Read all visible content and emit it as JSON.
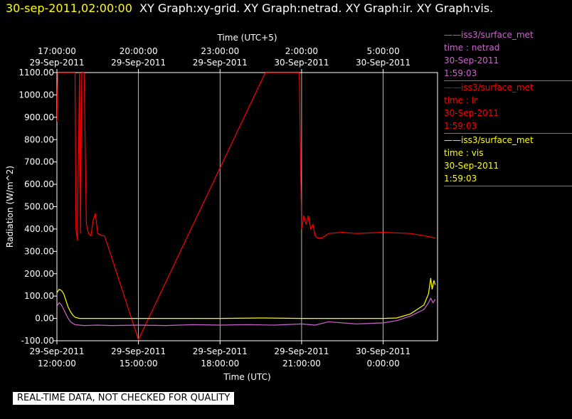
{
  "header": {
    "timestamp": "30-sep-2011,02:00:00",
    "titles": "XY Graph:xy-grid.  XY Graph:netrad.  XY Graph:ir.  XY Graph:vis."
  },
  "notice": "REAL-TIME DATA, NOT CHECKED FOR QUALITY",
  "colors": {
    "netrad": "#cc66cc",
    "ir": "#ff0000",
    "vis": "#ffff00",
    "grid": "#ffffff",
    "background": "#000000"
  },
  "legend": [
    {
      "station": "iss3/surface_met",
      "var": "time : netrad",
      "date": "30-Sep-2011",
      "time": "1:59:03",
      "color": "#cc66cc"
    },
    {
      "station": "iss3/surface_met",
      "var": "time : ir",
      "date": "30-Sep-2011",
      "time": "1:59:03",
      "color": "#ff0000"
    },
    {
      "station": "iss3/surface_met",
      "var": "time : vis",
      "date": "30-Sep-2011",
      "time": "1:59:03",
      "color": "#ffff00"
    }
  ],
  "chart_data": {
    "type": "line",
    "ylabel": "Radiation (W/m^2)",
    "xlabel_bottom": "Time (UTC)",
    "xlabel_top": "Time (UTC+5)",
    "ylim": [
      -100,
      1100
    ],
    "xlim": [
      "2011-09-29 12:00",
      "2011-09-30 02:00"
    ],
    "grid": true,
    "legend_position": "right",
    "yticks": [
      "1100.00",
      "1000.00",
      "900.00",
      "800.00",
      "700.00",
      "600.00",
      "500.00",
      "400.00",
      "300.00",
      "200.00",
      "100.00",
      "0.00",
      "-100.00"
    ],
    "xticks_bottom": [
      {
        "date": "29-Sep-2011",
        "time": "12:00:00"
      },
      {
        "date": "29-Sep-2011",
        "time": "15:00:00"
      },
      {
        "date": "29-Sep-2011",
        "time": "18:00:00"
      },
      {
        "date": "29-Sep-2011",
        "time": "21:00:00"
      },
      {
        "date": "30-Sep-2011",
        "time": "0:00:00"
      }
    ],
    "xticks_top": [
      {
        "time": "17:00:00",
        "date": "29-Sep-2011"
      },
      {
        "time": "20:00:00",
        "date": "29-Sep-2011"
      },
      {
        "time": "23:00:00",
        "date": "29-Sep-2011"
      },
      {
        "time": "2:00:00",
        "date": "30-Sep-2011"
      },
      {
        "time": "5:00:00",
        "date": "30-Sep-2011"
      }
    ],
    "series": [
      {
        "key": "ir",
        "x": [
          "2011-09-29 12:00",
          "2011-09-29 12:02",
          "2011-09-29 12:05",
          "2011-09-29 12:10",
          "2011-09-29 12:20",
          "2011-09-29 12:40",
          "2011-09-29 12:42",
          "2011-09-29 12:45",
          "2011-09-29 12:50",
          "2011-09-29 12:52",
          "2011-09-29 12:55",
          "2011-09-29 13:00",
          "2011-09-29 13:05",
          "2011-09-29 13:10",
          "2011-09-29 13:15",
          "2011-09-29 13:20",
          "2011-09-29 13:25",
          "2011-09-29 13:30",
          "2011-09-29 13:40",
          "2011-09-29 13:45",
          "2011-09-29 15:00",
          "2011-09-29 19:40",
          "2011-09-29 20:55",
          "2011-09-29 21:00",
          "2011-09-29 21:05",
          "2011-09-29 21:10",
          "2011-09-29 21:15",
          "2011-09-29 21:20",
          "2011-09-29 21:25",
          "2011-09-29 21:30",
          "2011-09-29 21:35",
          "2011-09-29 21:45",
          "2011-09-29 22:00",
          "2011-09-29 22:30",
          "2011-09-29 23:00",
          "2011-09-30 00:00",
          "2011-09-30 01:00",
          "2011-09-30 01:30",
          "2011-09-30 01:55"
        ],
        "y": [
          880,
          1100,
          1100,
          1100,
          1100,
          1100,
          400,
          350,
          1100,
          380,
          1100,
          1100,
          420,
          380,
          370,
          440,
          470,
          380,
          370,
          370,
          -95,
          1100,
          1100,
          400,
          460,
          420,
          460,
          400,
          420,
          370,
          360,
          360,
          380,
          385,
          380,
          385,
          380,
          370,
          360
        ]
      },
      {
        "key": "vis",
        "x": [
          "2011-09-29 12:00",
          "2011-09-29 12:05",
          "2011-09-29 12:10",
          "2011-09-29 12:15",
          "2011-09-29 12:20",
          "2011-09-29 12:25",
          "2011-09-29 12:30",
          "2011-09-29 12:35",
          "2011-09-29 12:40",
          "2011-09-29 12:50",
          "2011-09-29 13:00",
          "2011-09-29 15:00",
          "2011-09-29 18:00",
          "2011-09-29 19:30",
          "2011-09-29 21:00",
          "2011-09-30 00:00",
          "2011-09-30 00:30",
          "2011-09-30 01:00",
          "2011-09-30 01:15",
          "2011-09-30 01:30",
          "2011-09-30 01:40",
          "2011-09-30 01:45",
          "2011-09-30 01:48",
          "2011-09-30 01:52",
          "2011-09-30 01:55"
        ],
        "y": [
          115,
          130,
          125,
          110,
          80,
          50,
          30,
          15,
          5,
          0,
          0,
          0,
          0,
          2,
          0,
          0,
          2,
          20,
          40,
          60,
          110,
          180,
          130,
          170,
          150
        ]
      },
      {
        "key": "netrad",
        "x": [
          "2011-09-29 12:00",
          "2011-09-29 12:05",
          "2011-09-29 12:10",
          "2011-09-29 12:15",
          "2011-09-29 12:20",
          "2011-09-29 12:25",
          "2011-09-29 12:30",
          "2011-09-29 12:35",
          "2011-09-29 12:40",
          "2011-09-29 12:50",
          "2011-09-29 13:00",
          "2011-09-29 13:30",
          "2011-09-29 14:00",
          "2011-09-29 15:00",
          "2011-09-29 16:00",
          "2011-09-29 17:00",
          "2011-09-29 18:00",
          "2011-09-29 19:00",
          "2011-09-29 20:00",
          "2011-09-29 21:00",
          "2011-09-29 21:30",
          "2011-09-29 22:00",
          "2011-09-29 23:00",
          "2011-09-30 00:00",
          "2011-09-30 00:30",
          "2011-09-30 01:00",
          "2011-09-30 01:15",
          "2011-09-30 01:30",
          "2011-09-30 01:40",
          "2011-09-30 01:45",
          "2011-09-30 01:50",
          "2011-09-30 01:55"
        ],
        "y": [
          55,
          70,
          60,
          40,
          20,
          0,
          -15,
          -22,
          -28,
          -30,
          -32,
          -30,
          -32,
          -30,
          -32,
          -28,
          -30,
          -28,
          -30,
          -25,
          -30,
          -15,
          -25,
          -20,
          -10,
          10,
          25,
          40,
          70,
          90,
          70,
          85
        ]
      }
    ]
  }
}
